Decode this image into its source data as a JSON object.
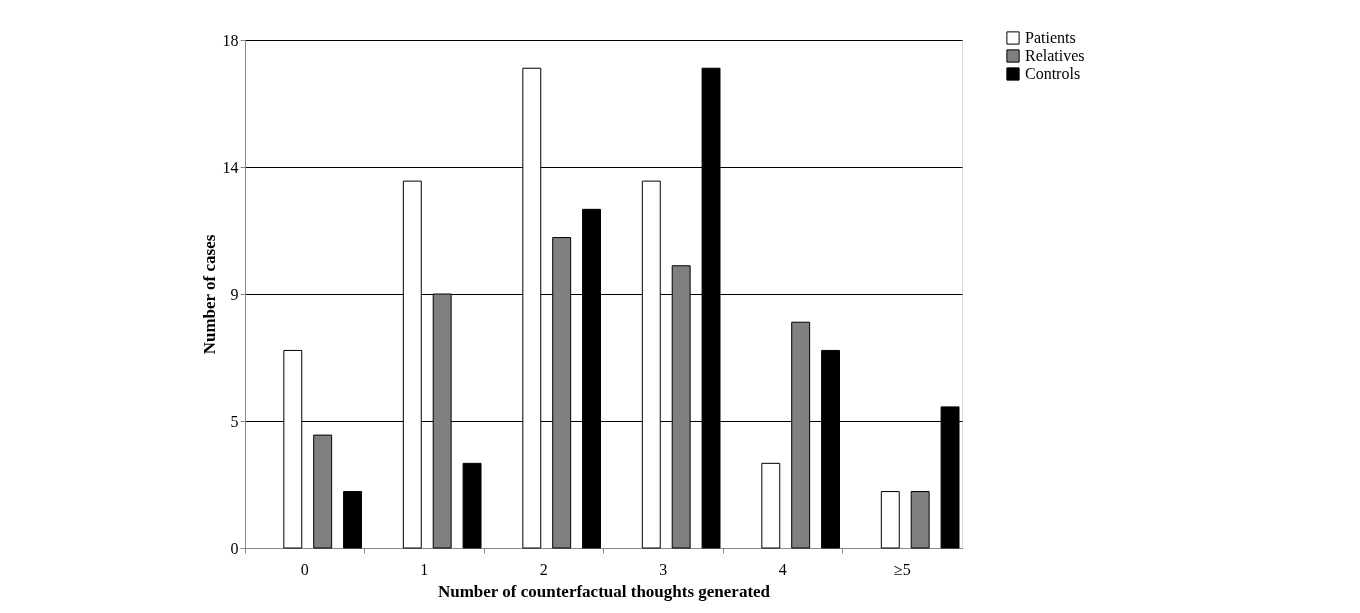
{
  "chart_data": {
    "type": "bar",
    "xlabel": "Number of counterfactual thoughts generated",
    "ylabel": "Number of cases",
    "categories": [
      "0",
      "1",
      "2",
      "3",
      "4",
      "≥5"
    ],
    "series": [
      {
        "name": "Patients",
        "color": "#ffffff",
        "values": [
          7,
          13,
          17,
          13,
          3,
          2
        ]
      },
      {
        "name": "Relatives",
        "color": "#808080",
        "values": [
          4,
          9,
          11,
          10,
          8,
          2
        ]
      },
      {
        "name": "Controls",
        "color": "#000000",
        "values": [
          2,
          3,
          12,
          17,
          7,
          5
        ]
      }
    ],
    "ylim": [
      0,
      18
    ],
    "yticks": [
      0,
      {
        "value": 4.5,
        "label": "5"
      },
      9,
      {
        "value": 13.5,
        "label": "14"
      },
      18
    ],
    "grid": "y",
    "legend": "top right"
  }
}
